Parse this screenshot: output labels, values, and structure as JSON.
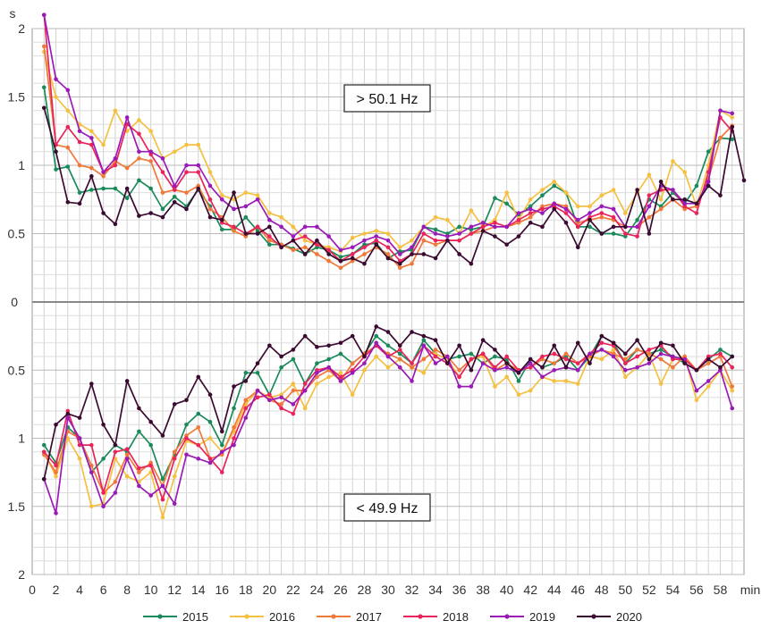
{
  "chart_data": {
    "type": "line",
    "x_axis": {
      "unit": "min",
      "range": [
        0,
        60
      ],
      "ticks": [
        "0",
        "2",
        "4",
        "6",
        "8",
        "10",
        "12",
        "14",
        "16",
        "18",
        "20",
        "22",
        "24",
        "26",
        "28",
        "30",
        "32",
        "34",
        "36",
        "38",
        "40",
        "42",
        "44",
        "46",
        "48",
        "50",
        "52",
        "54",
        "56",
        "58"
      ]
    },
    "y_axis": {
      "unit": "s",
      "top_ticks": [
        "2",
        "1.5",
        "1",
        "0.5"
      ],
      "zero_label": "0",
      "bottom_ticks": [
        "0.5",
        "1",
        "1.5",
        "2"
      ]
    },
    "grid": true,
    "legend_position": "bottom",
    "colors": {
      "2015": "#1a8a5a",
      "2016": "#f5c040",
      "2017": "#f07838",
      "2018": "#e8245a",
      "2019": "#9a1ab8",
      "2020": "#3a0a30"
    },
    "panels": [
      {
        "id": "upper",
        "annotation": "> 50.1 Hz",
        "series": [
          {
            "name": "2015",
            "values": [
              1.57,
              0.97,
              0.99,
              0.8,
              0.82,
              0.83,
              0.83,
              0.76,
              0.89,
              0.83,
              0.68,
              0.77,
              0.7,
              0.82,
              0.7,
              0.53,
              0.53,
              0.62,
              0.52,
              0.42,
              0.42,
              0.39,
              0.35,
              0.4,
              0.38,
              0.33,
              0.35,
              0.42,
              0.43,
              0.32,
              0.37,
              0.38,
              0.55,
              0.53,
              0.5,
              0.55,
              0.53,
              0.55,
              0.76,
              0.72,
              0.64,
              0.7,
              0.78,
              0.85,
              0.8,
              0.55,
              0.55,
              0.5,
              0.5,
              0.48,
              0.6,
              0.75,
              0.7,
              0.8,
              0.72,
              0.85,
              1.1,
              1.2,
              1.19
            ]
          },
          {
            "name": "2016",
            "values": [
              1.83,
              1.5,
              1.4,
              1.3,
              1.25,
              1.15,
              1.4,
              1.25,
              1.33,
              1.25,
              1.05,
              1.1,
              1.15,
              1.15,
              0.95,
              0.78,
              0.75,
              0.8,
              0.78,
              0.65,
              0.62,
              0.55,
              0.45,
              0.42,
              0.4,
              0.37,
              0.47,
              0.5,
              0.52,
              0.5,
              0.4,
              0.45,
              0.55,
              0.62,
              0.6,
              0.5,
              0.67,
              0.55,
              0.6,
              0.8,
              0.6,
              0.75,
              0.82,
              0.88,
              0.8,
              0.7,
              0.7,
              0.78,
              0.82,
              0.65,
              0.8,
              0.93,
              0.75,
              1.03,
              0.95,
              0.7,
              1.0,
              1.4,
              1.35
            ]
          },
          {
            "name": "2017",
            "values": [
              1.87,
              1.15,
              1.13,
              1.0,
              0.98,
              0.92,
              1.03,
              0.98,
              1.05,
              1.03,
              0.8,
              0.82,
              0.8,
              0.85,
              0.68,
              0.62,
              0.52,
              0.48,
              0.55,
              0.45,
              0.42,
              0.38,
              0.4,
              0.35,
              0.3,
              0.25,
              0.3,
              0.35,
              0.4,
              0.35,
              0.25,
              0.28,
              0.45,
              0.42,
              0.45,
              0.45,
              0.5,
              0.52,
              0.55,
              0.55,
              0.58,
              0.62,
              0.7,
              0.72,
              0.7,
              0.58,
              0.6,
              0.62,
              0.6,
              0.55,
              0.55,
              0.62,
              0.68,
              0.75,
              0.68,
              0.7,
              0.9,
              1.2,
              1.29
            ]
          },
          {
            "name": "2018",
            "values": [
              2.1,
              1.15,
              1.28,
              1.17,
              1.15,
              0.95,
              1.0,
              1.3,
              1.23,
              1.08,
              0.95,
              0.82,
              0.95,
              0.95,
              0.75,
              0.58,
              0.55,
              0.5,
              0.55,
              0.48,
              0.4,
              0.45,
              0.48,
              0.42,
              0.38,
              0.3,
              0.35,
              0.4,
              0.45,
              0.4,
              0.3,
              0.35,
              0.5,
              0.45,
              0.45,
              0.45,
              0.5,
              0.55,
              0.58,
              0.55,
              0.6,
              0.65,
              0.68,
              0.7,
              0.65,
              0.55,
              0.62,
              0.65,
              0.62,
              0.5,
              0.48,
              0.78,
              0.82,
              0.82,
              0.7,
              0.65,
              0.95,
              1.35,
              1.25
            ]
          },
          {
            "name": "2019",
            "values": [
              2.1,
              1.63,
              1.55,
              1.25,
              1.2,
              0.95,
              1.05,
              1.35,
              1.1,
              1.1,
              1.05,
              0.85,
              1.0,
              1.0,
              0.85,
              0.75,
              0.68,
              0.7,
              0.75,
              0.6,
              0.55,
              0.48,
              0.55,
              0.55,
              0.48,
              0.38,
              0.4,
              0.45,
              0.48,
              0.45,
              0.35,
              0.4,
              0.55,
              0.5,
              0.48,
              0.5,
              0.55,
              0.58,
              0.55,
              0.55,
              0.65,
              0.68,
              0.65,
              0.72,
              0.68,
              0.6,
              0.65,
              0.7,
              0.68,
              0.55,
              0.55,
              0.7,
              0.85,
              0.82,
              0.72,
              0.72,
              0.88,
              1.4,
              1.38
            ]
          },
          {
            "name": "2020",
            "values": [
              1.42,
              1.1,
              0.73,
              0.72,
              0.92,
              0.65,
              0.57,
              0.83,
              0.63,
              0.65,
              0.62,
              0.73,
              0.68,
              0.83,
              0.62,
              0.6,
              0.8,
              0.5,
              0.5,
              0.55,
              0.4,
              0.45,
              0.35,
              0.45,
              0.35,
              0.3,
              0.32,
              0.28,
              0.42,
              0.32,
              0.28,
              0.35,
              0.35,
              0.32,
              0.45,
              0.35,
              0.28,
              0.52,
              0.48,
              0.42,
              0.48,
              0.58,
              0.55,
              0.68,
              0.58,
              0.4,
              0.6,
              0.5,
              0.55,
              0.55,
              0.82,
              0.5,
              0.88,
              0.75,
              0.75,
              0.72,
              0.85,
              0.78,
              1.28,
              0.89
            ]
          }
        ]
      },
      {
        "id": "lower",
        "annotation": "< 49.9 Hz",
        "series": [
          {
            "name": "2015",
            "values": [
              1.05,
              1.18,
              0.92,
              1.0,
              1.25,
              1.15,
              1.05,
              1.1,
              0.95,
              1.05,
              1.3,
              1.12,
              0.9,
              0.82,
              0.88,
              1.05,
              0.78,
              0.52,
              0.52,
              0.68,
              0.48,
              0.42,
              0.6,
              0.45,
              0.42,
              0.38,
              0.45,
              0.38,
              0.25,
              0.32,
              0.38,
              0.45,
              0.28,
              0.38,
              0.42,
              0.4,
              0.38,
              0.45,
              0.4,
              0.42,
              0.58,
              0.42,
              0.48,
              0.45,
              0.4,
              0.5,
              0.4,
              0.25,
              0.3,
              0.45,
              0.35,
              0.38,
              0.35,
              0.4,
              0.45,
              0.5,
              0.42,
              0.35,
              0.4
            ]
          },
          {
            "name": "2016",
            "values": [
              1.1,
              1.28,
              1.0,
              1.15,
              1.5,
              1.48,
              1.15,
              1.28,
              1.32,
              1.25,
              1.58,
              1.28,
              1.02,
              1.05,
              1.0,
              1.1,
              0.95,
              0.75,
              0.65,
              0.7,
              0.68,
              0.6,
              0.78,
              0.6,
              0.55,
              0.52,
              0.68,
              0.5,
              0.4,
              0.48,
              0.42,
              0.48,
              0.52,
              0.38,
              0.42,
              0.55,
              0.42,
              0.4,
              0.62,
              0.55,
              0.68,
              0.65,
              0.55,
              0.58,
              0.58,
              0.6,
              0.4,
              0.42,
              0.35,
              0.55,
              0.48,
              0.38,
              0.6,
              0.42,
              0.4,
              0.72,
              0.62,
              0.5,
              0.65
            ]
          },
          {
            "name": "2017",
            "values": [
              1.12,
              1.25,
              0.95,
              1.0,
              1.2,
              1.4,
              1.32,
              1.12,
              1.25,
              1.18,
              1.35,
              1.1,
              0.98,
              0.92,
              1.15,
              1.12,
              0.92,
              0.72,
              0.65,
              0.72,
              0.75,
              0.65,
              0.65,
              0.55,
              0.5,
              0.58,
              0.45,
              0.38,
              0.32,
              0.38,
              0.42,
              0.48,
              0.42,
              0.35,
              0.4,
              0.5,
              0.42,
              0.38,
              0.5,
              0.45,
              0.5,
              0.48,
              0.42,
              0.45,
              0.38,
              0.45,
              0.4,
              0.35,
              0.38,
              0.42,
              0.35,
              0.38,
              0.42,
              0.48,
              0.4,
              0.5,
              0.45,
              0.4,
              0.62
            ]
          },
          {
            "name": "2018",
            "values": [
              1.1,
              1.2,
              0.8,
              1.05,
              1.05,
              1.4,
              1.1,
              1.08,
              1.22,
              1.2,
              1.45,
              1.15,
              1.0,
              1.05,
              1.15,
              1.25,
              1.0,
              0.78,
              0.7,
              0.68,
              0.78,
              0.82,
              0.6,
              0.5,
              0.48,
              0.55,
              0.5,
              0.4,
              0.32,
              0.4,
              0.35,
              0.45,
              0.32,
              0.4,
              0.45,
              0.55,
              0.42,
              0.38,
              0.48,
              0.4,
              0.5,
              0.48,
              0.4,
              0.38,
              0.42,
              0.45,
              0.38,
              0.3,
              0.32,
              0.45,
              0.4,
              0.35,
              0.32,
              0.42,
              0.42,
              0.5,
              0.4,
              0.38,
              0.48
            ]
          },
          {
            "name": "2019",
            "values": [
              1.3,
              1.55,
              0.85,
              1.0,
              1.25,
              1.5,
              1.4,
              1.15,
              1.35,
              1.42,
              1.35,
              1.48,
              1.12,
              1.15,
              1.18,
              1.1,
              1.05,
              0.85,
              0.65,
              0.72,
              0.7,
              0.75,
              0.65,
              0.52,
              0.48,
              0.58,
              0.52,
              0.45,
              0.3,
              0.4,
              0.48,
              0.58,
              0.32,
              0.45,
              0.4,
              0.62,
              0.62,
              0.45,
              0.5,
              0.48,
              0.52,
              0.45,
              0.55,
              0.5,
              0.48,
              0.5,
              0.38,
              0.35,
              0.4,
              0.5,
              0.48,
              0.45,
              0.38,
              0.4,
              0.42,
              0.65,
              0.58,
              0.5,
              0.78
            ]
          },
          {
            "name": "2020",
            "values": [
              1.3,
              0.9,
              0.82,
              0.85,
              0.6,
              0.9,
              1.05,
              0.58,
              0.78,
              0.88,
              0.98,
              0.75,
              0.72,
              0.55,
              0.68,
              0.95,
              0.62,
              0.58,
              0.45,
              0.32,
              0.4,
              0.35,
              0.25,
              0.33,
              0.32,
              0.3,
              0.25,
              0.4,
              0.18,
              0.22,
              0.32,
              0.22,
              0.25,
              0.28,
              0.45,
              0.32,
              0.5,
              0.28,
              0.35,
              0.45,
              0.52,
              0.42,
              0.48,
              0.32,
              0.48,
              0.3,
              0.45,
              0.25,
              0.3,
              0.38,
              0.28,
              0.42,
              0.3,
              0.32,
              0.45,
              0.5,
              0.42,
              0.48,
              0.4
            ]
          }
        ]
      }
    ],
    "legend": [
      "2015",
      "2016",
      "2017",
      "2018",
      "2019",
      "2020"
    ]
  }
}
